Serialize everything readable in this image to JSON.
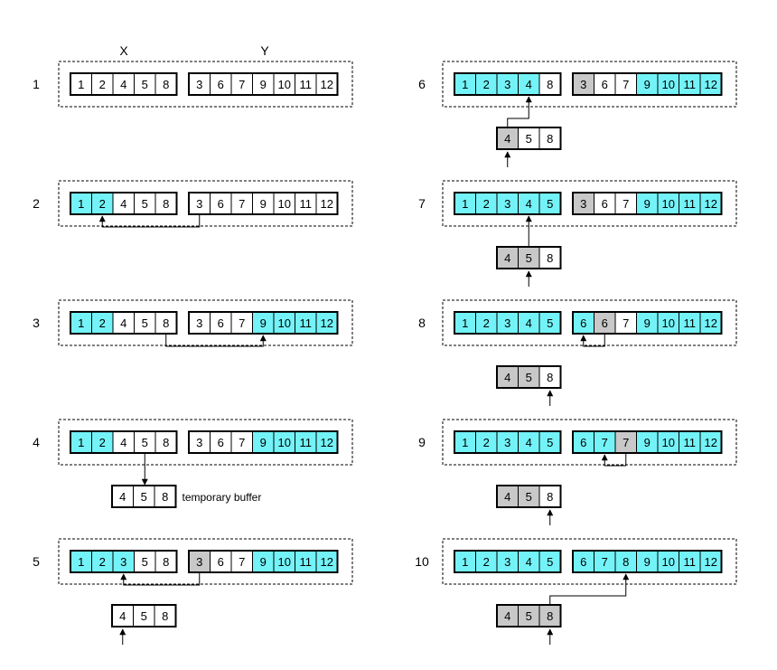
{
  "header": {
    "x_label": "X",
    "y_label": "Y"
  },
  "colors": {
    "highlight": "#73f3f7",
    "buffer_fill": "#c8c8c8",
    "plain": "#ffffff",
    "stroke": "#000000"
  },
  "buffer_label": "temporary buffer",
  "steps": [
    {
      "num": "1",
      "x": [
        {
          "v": "1",
          "f": "w"
        },
        {
          "v": "2",
          "f": "w"
        },
        {
          "v": "4",
          "f": "w"
        },
        {
          "v": "5",
          "f": "w"
        },
        {
          "v": "8",
          "f": "w"
        }
      ],
      "y": [
        {
          "v": "3",
          "f": "w"
        },
        {
          "v": "6",
          "f": "w"
        },
        {
          "v": "7",
          "f": "w"
        },
        {
          "v": "9",
          "f": "w"
        },
        {
          "v": "10",
          "f": "w"
        },
        {
          "v": "11",
          "f": "w"
        },
        {
          "v": "12",
          "f": "w"
        }
      ]
    },
    {
      "num": "2",
      "x": [
        {
          "v": "1",
          "f": "c"
        },
        {
          "v": "2",
          "f": "c"
        },
        {
          "v": "4",
          "f": "w"
        },
        {
          "v": "5",
          "f": "w"
        },
        {
          "v": "8",
          "f": "w"
        }
      ],
      "y": [
        {
          "v": "3",
          "f": "w"
        },
        {
          "v": "6",
          "f": "w"
        },
        {
          "v": "7",
          "f": "w"
        },
        {
          "v": "9",
          "f": "w"
        },
        {
          "v": "10",
          "f": "w"
        },
        {
          "v": "11",
          "f": "w"
        },
        {
          "v": "12",
          "f": "w"
        }
      ]
    },
    {
      "num": "3",
      "x": [
        {
          "v": "1",
          "f": "c"
        },
        {
          "v": "2",
          "f": "c"
        },
        {
          "v": "4",
          "f": "w"
        },
        {
          "v": "5",
          "f": "w"
        },
        {
          "v": "8",
          "f": "w"
        }
      ],
      "y": [
        {
          "v": "3",
          "f": "w"
        },
        {
          "v": "6",
          "f": "w"
        },
        {
          "v": "7",
          "f": "w"
        },
        {
          "v": "9",
          "f": "c"
        },
        {
          "v": "10",
          "f": "c"
        },
        {
          "v": "11",
          "f": "c"
        },
        {
          "v": "12",
          "f": "c"
        }
      ]
    },
    {
      "num": "4",
      "x": [
        {
          "v": "1",
          "f": "c"
        },
        {
          "v": "2",
          "f": "c"
        },
        {
          "v": "4",
          "f": "w"
        },
        {
          "v": "5",
          "f": "w"
        },
        {
          "v": "8",
          "f": "w"
        }
      ],
      "y": [
        {
          "v": "3",
          "f": "w"
        },
        {
          "v": "6",
          "f": "w"
        },
        {
          "v": "7",
          "f": "w"
        },
        {
          "v": "9",
          "f": "c"
        },
        {
          "v": "10",
          "f": "c"
        },
        {
          "v": "11",
          "f": "c"
        },
        {
          "v": "12",
          "f": "c"
        }
      ],
      "buffer": [
        {
          "v": "4",
          "f": "w"
        },
        {
          "v": "5",
          "f": "w"
        },
        {
          "v": "8",
          "f": "w"
        }
      ]
    },
    {
      "num": "5",
      "x": [
        {
          "v": "1",
          "f": "c"
        },
        {
          "v": "2",
          "f": "c"
        },
        {
          "v": "3",
          "f": "c"
        },
        {
          "v": "5",
          "f": "w"
        },
        {
          "v": "8",
          "f": "w"
        }
      ],
      "y": [
        {
          "v": "3",
          "f": "g"
        },
        {
          "v": "6",
          "f": "w"
        },
        {
          "v": "7",
          "f": "w"
        },
        {
          "v": "9",
          "f": "c"
        },
        {
          "v": "10",
          "f": "c"
        },
        {
          "v": "11",
          "f": "c"
        },
        {
          "v": "12",
          "f": "c"
        }
      ],
      "buffer": [
        {
          "v": "4",
          "f": "w"
        },
        {
          "v": "5",
          "f": "w"
        },
        {
          "v": "8",
          "f": "w"
        }
      ]
    },
    {
      "num": "6",
      "x": [
        {
          "v": "1",
          "f": "c"
        },
        {
          "v": "2",
          "f": "c"
        },
        {
          "v": "3",
          "f": "c"
        },
        {
          "v": "4",
          "f": "c"
        },
        {
          "v": "8",
          "f": "w"
        }
      ],
      "y": [
        {
          "v": "3",
          "f": "g"
        },
        {
          "v": "6",
          "f": "w"
        },
        {
          "v": "7",
          "f": "w"
        },
        {
          "v": "9",
          "f": "c"
        },
        {
          "v": "10",
          "f": "c"
        },
        {
          "v": "11",
          "f": "c"
        },
        {
          "v": "12",
          "f": "c"
        }
      ],
      "buffer": [
        {
          "v": "4",
          "f": "g"
        },
        {
          "v": "5",
          "f": "w"
        },
        {
          "v": "8",
          "f": "w"
        }
      ]
    },
    {
      "num": "7",
      "x": [
        {
          "v": "1",
          "f": "c"
        },
        {
          "v": "2",
          "f": "c"
        },
        {
          "v": "3",
          "f": "c"
        },
        {
          "v": "4",
          "f": "c"
        },
        {
          "v": "5",
          "f": "c"
        }
      ],
      "y": [
        {
          "v": "3",
          "f": "g"
        },
        {
          "v": "6",
          "f": "w"
        },
        {
          "v": "7",
          "f": "w"
        },
        {
          "v": "9",
          "f": "c"
        },
        {
          "v": "10",
          "f": "c"
        },
        {
          "v": "11",
          "f": "c"
        },
        {
          "v": "12",
          "f": "c"
        }
      ],
      "buffer": [
        {
          "v": "4",
          "f": "g"
        },
        {
          "v": "5",
          "f": "g"
        },
        {
          "v": "8",
          "f": "w"
        }
      ]
    },
    {
      "num": "8",
      "x": [
        {
          "v": "1",
          "f": "c"
        },
        {
          "v": "2",
          "f": "c"
        },
        {
          "v": "3",
          "f": "c"
        },
        {
          "v": "4",
          "f": "c"
        },
        {
          "v": "5",
          "f": "c"
        }
      ],
      "y": [
        {
          "v": "6",
          "f": "c"
        },
        {
          "v": "6",
          "f": "g"
        },
        {
          "v": "7",
          "f": "w"
        },
        {
          "v": "9",
          "f": "c"
        },
        {
          "v": "10",
          "f": "c"
        },
        {
          "v": "11",
          "f": "c"
        },
        {
          "v": "12",
          "f": "c"
        }
      ],
      "buffer": [
        {
          "v": "4",
          "f": "g"
        },
        {
          "v": "5",
          "f": "g"
        },
        {
          "v": "8",
          "f": "w"
        }
      ]
    },
    {
      "num": "9",
      "x": [
        {
          "v": "1",
          "f": "c"
        },
        {
          "v": "2",
          "f": "c"
        },
        {
          "v": "3",
          "f": "c"
        },
        {
          "v": "4",
          "f": "c"
        },
        {
          "v": "5",
          "f": "c"
        }
      ],
      "y": [
        {
          "v": "6",
          "f": "c"
        },
        {
          "v": "7",
          "f": "c"
        },
        {
          "v": "7",
          "f": "g"
        },
        {
          "v": "9",
          "f": "c"
        },
        {
          "v": "10",
          "f": "c"
        },
        {
          "v": "11",
          "f": "c"
        },
        {
          "v": "12",
          "f": "c"
        }
      ],
      "buffer": [
        {
          "v": "4",
          "f": "g"
        },
        {
          "v": "5",
          "f": "g"
        },
        {
          "v": "8",
          "f": "w"
        }
      ]
    },
    {
      "num": "10",
      "x": [
        {
          "v": "1",
          "f": "c"
        },
        {
          "v": "2",
          "f": "c"
        },
        {
          "v": "3",
          "f": "c"
        },
        {
          "v": "4",
          "f": "c"
        },
        {
          "v": "5",
          "f": "c"
        }
      ],
      "y": [
        {
          "v": "6",
          "f": "c"
        },
        {
          "v": "7",
          "f": "c"
        },
        {
          "v": "8",
          "f": "c"
        },
        {
          "v": "9",
          "f": "c"
        },
        {
          "v": "10",
          "f": "c"
        },
        {
          "v": "11",
          "f": "c"
        },
        {
          "v": "12",
          "f": "c"
        }
      ],
      "buffer": [
        {
          "v": "4",
          "f": "g"
        },
        {
          "v": "5",
          "f": "g"
        },
        {
          "v": "8",
          "f": "g"
        }
      ]
    }
  ]
}
